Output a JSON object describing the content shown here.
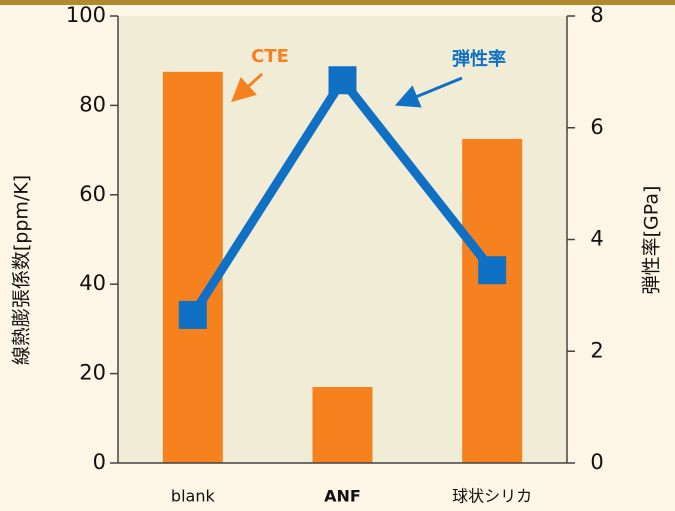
{
  "chart_data": {
    "type": "bar_line",
    "categories": [
      "blank",
      "ANF",
      "球状シリカ"
    ],
    "series": [
      {
        "name": "CTE",
        "type": "bar",
        "color": "#f5821f",
        "values": [
          87.5,
          17,
          72.5
        ]
      },
      {
        "name": "弾性率",
        "type": "line",
        "color": "#1070c4",
        "axis": "y2",
        "values": [
          2.65,
          6.85,
          3.45
        ]
      }
    ],
    "ylabel": "線熱膨張係数[ppm/K]",
    "y2label": "弾性率[GPa]",
    "ylim": [
      0,
      100
    ],
    "yticks": [
      0,
      20,
      40,
      60,
      80,
      100
    ],
    "y2lim": [
      0,
      8
    ],
    "y2ticks": [
      0,
      2,
      4,
      6,
      8
    ]
  }
}
